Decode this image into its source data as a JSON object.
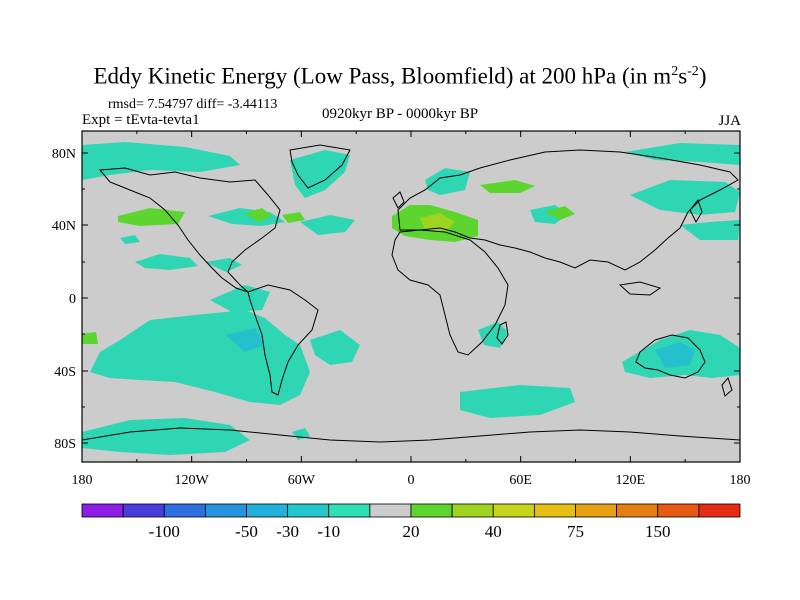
{
  "title": {
    "main": "Eddy Kinetic Energy (Low Pass, Bloomfield) at 200 hPa (in m",
    "sup1": "2",
    "mid": "s",
    "sup2": "-2",
    "end": ")"
  },
  "stats": "rmsd= 7.54797  diff= -3.44113",
  "experiment": "Expt = tEvta-tevta1",
  "period": "0920kyr BP - 0000kyr BP",
  "season": "JJA",
  "map": {
    "lat_labels": [
      "80N",
      "40N",
      "0",
      "40S",
      "80S"
    ],
    "lon_labels": [
      "180",
      "120W",
      "60W",
      "0",
      "60E",
      "120E",
      "180"
    ],
    "background_color": "#cccccc",
    "positive_color": "#5cd62e",
    "positive_strong_color": "#9ed420",
    "negative_color": "#2ed6b4",
    "negative_strong_color": "#26bfcc"
  },
  "colorbar": {
    "labels": [
      "-100",
      "-50",
      "-30",
      "-10",
      "20",
      "40",
      "75",
      "150"
    ],
    "colors": [
      "#8c1ee6",
      "#4b3cdc",
      "#2e6ee0",
      "#2493e0",
      "#22b1dc",
      "#22c8cc",
      "#2ee0b4",
      "#cccccc",
      "#5cd62e",
      "#9ed420",
      "#c8d41c",
      "#e6be14",
      "#e6a014",
      "#e67e14",
      "#e65a14",
      "#e62d14"
    ]
  }
}
